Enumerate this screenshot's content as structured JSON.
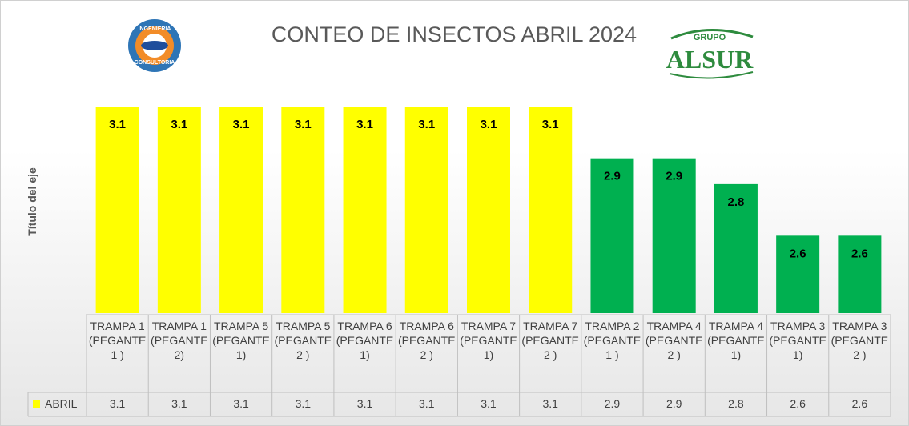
{
  "chart_data": {
    "type": "bar",
    "title": "CONTEO DE INSECTOS ABRIL 2024",
    "y_axis_label": "Título del eje",
    "logos": {
      "left": [
        "INGENIERIA",
        "CONSULTORIA"
      ],
      "right": [
        "GRUPO",
        "ALSUR"
      ]
    },
    "categories": [
      "TRAMPA 1 (PEGANTE 1 )",
      "TRAMPA 1 (PEGANTE 2)",
      "TRAMPA 5 (PEGANTE 1)",
      "TRAMPA 5 (PEGANTE 2 )",
      "TRAMPA 6 (PEGANTE 1)",
      "TRAMPA 6 (PEGANTE 2 )",
      "TRAMPA 7 (PEGANTE 1)",
      "TRAMPA 7 (PEGANTE 2 )",
      "TRAMPA 2 (PEGANTE 1 )",
      "TRAMPA 4 (PEGANTE 2 )",
      "TRAMPA 4 (PEGANTE 1)",
      "TRAMPA 3 (PEGANTE 1)",
      "TRAMPA 3 (PEGANTE 2 )"
    ],
    "series": [
      {
        "name": "ABRIL",
        "color": "#ffff00",
        "values": [
          3.1,
          3.1,
          3.1,
          3.1,
          3.1,
          3.1,
          3.1,
          3.1,
          2.9,
          2.9,
          2.8,
          2.6,
          2.6
        ],
        "point_colors": [
          "#ffff00",
          "#ffff00",
          "#ffff00",
          "#ffff00",
          "#ffff00",
          "#ffff00",
          "#ffff00",
          "#ffff00",
          "#00b050",
          "#00b050",
          "#00b050",
          "#00b050",
          "#00b050"
        ]
      }
    ],
    "ylim": [
      2.3,
      3.2
    ],
    "data_table": true
  }
}
